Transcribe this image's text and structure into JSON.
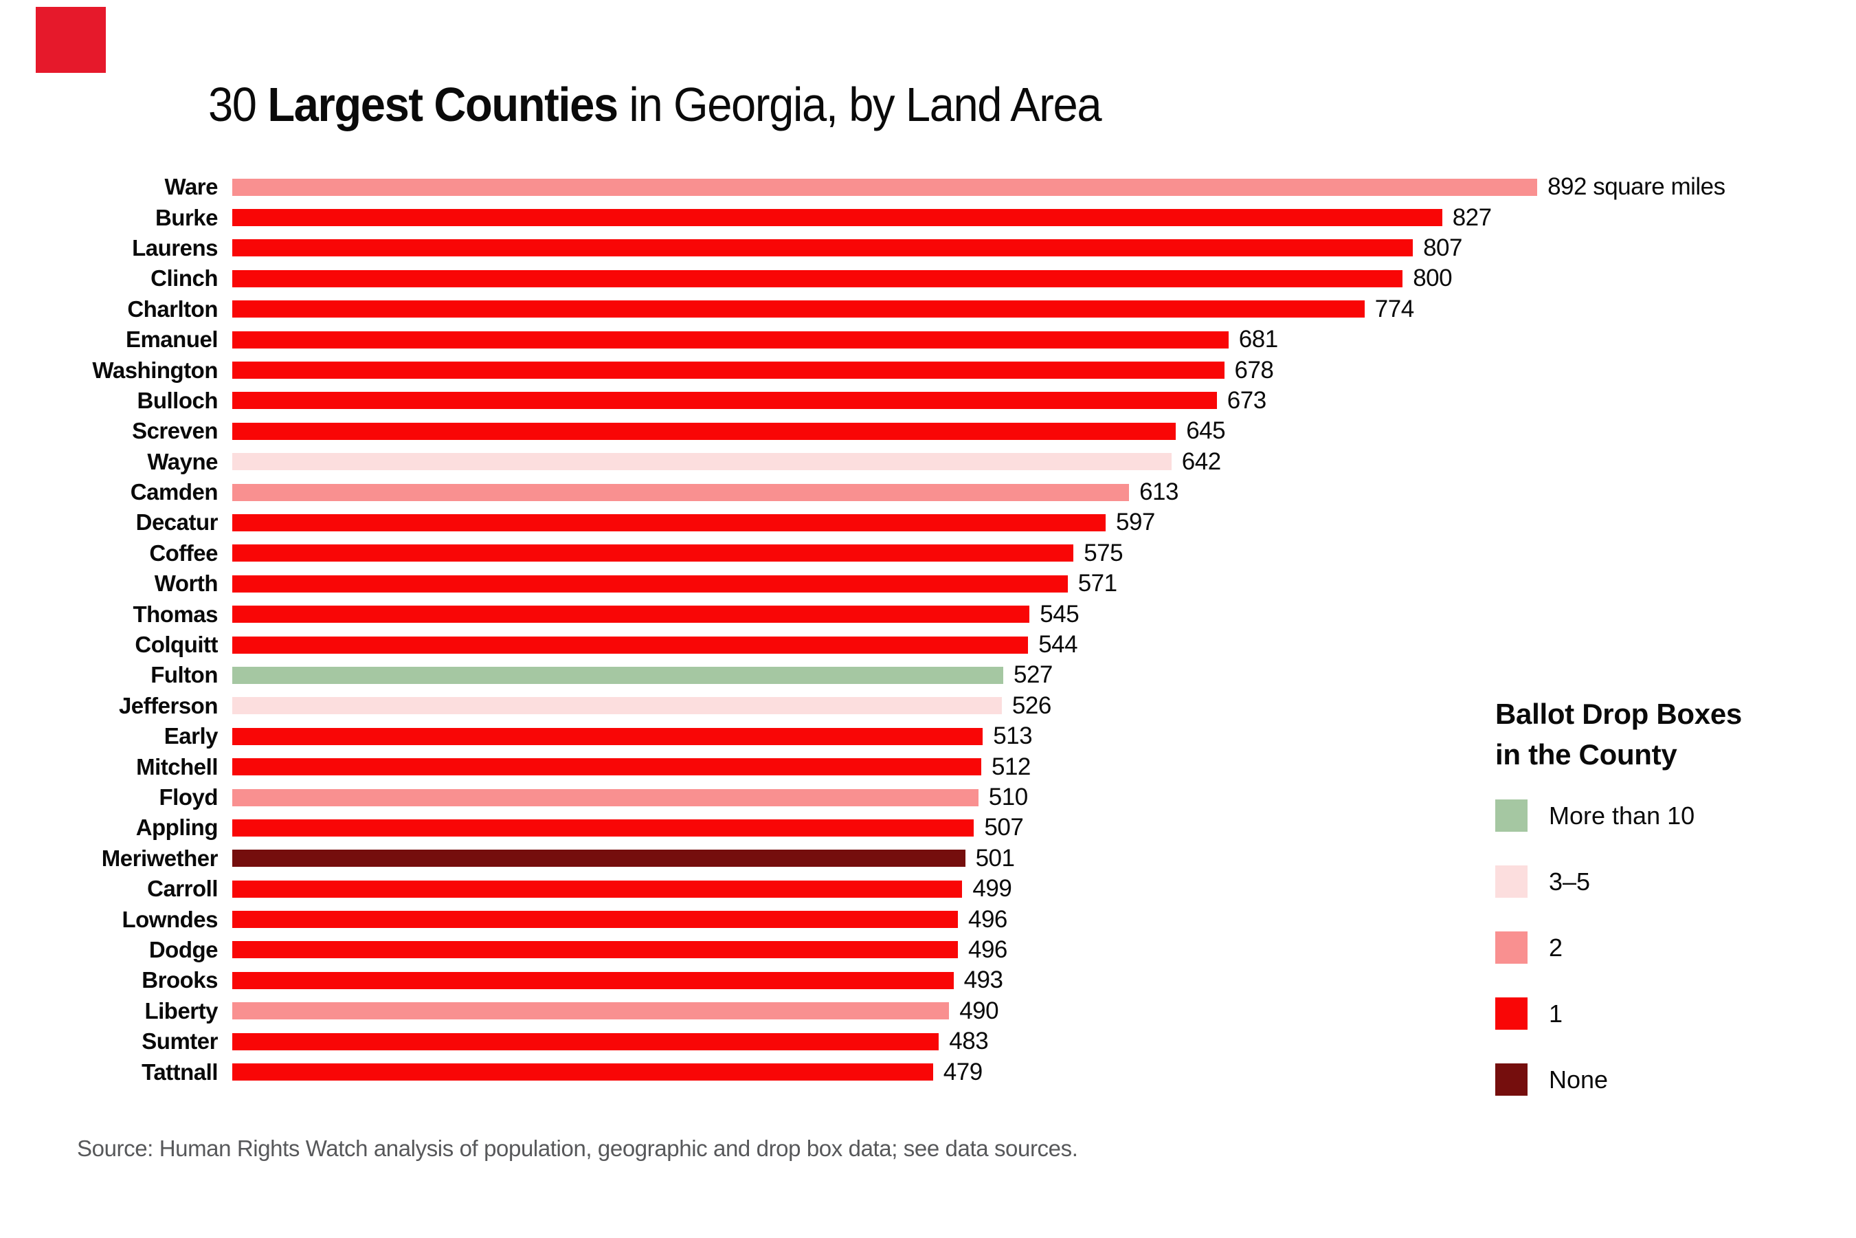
{
  "brand": {
    "logo_color": "#e6192b"
  },
  "title": {
    "prefix": "30 ",
    "bold": "Largest Counties",
    "suffix": " in Georgia, by Land Area"
  },
  "chart_data": {
    "type": "bar",
    "orientation": "horizontal",
    "title": "30 Largest Counties in Georgia, by Land Area",
    "value_unit": "square miles",
    "first_value_suffix": " square miles",
    "xlim": [
      0,
      900
    ],
    "grid": false,
    "legend_position": "right",
    "rows": [
      {
        "county": "Ware",
        "value": 892,
        "boxes": "2"
      },
      {
        "county": "Burke",
        "value": 827,
        "boxes": "1"
      },
      {
        "county": "Laurens",
        "value": 807,
        "boxes": "1"
      },
      {
        "county": "Clinch",
        "value": 800,
        "boxes": "1"
      },
      {
        "county": "Charlton",
        "value": 774,
        "boxes": "1"
      },
      {
        "county": "Emanuel",
        "value": 681,
        "boxes": "1"
      },
      {
        "county": "Washington",
        "value": 678,
        "boxes": "1"
      },
      {
        "county": "Bulloch",
        "value": 673,
        "boxes": "1"
      },
      {
        "county": "Screven",
        "value": 645,
        "boxes": "1"
      },
      {
        "county": "Wayne",
        "value": 642,
        "boxes": "3-5"
      },
      {
        "county": "Camden",
        "value": 613,
        "boxes": "2"
      },
      {
        "county": "Decatur",
        "value": 597,
        "boxes": "1"
      },
      {
        "county": "Coffee",
        "value": 575,
        "boxes": "1"
      },
      {
        "county": "Worth",
        "value": 571,
        "boxes": "1"
      },
      {
        "county": "Thomas",
        "value": 545,
        "boxes": "1"
      },
      {
        "county": "Colquitt",
        "value": 544,
        "boxes": "1"
      },
      {
        "county": "Fulton",
        "value": 527,
        "boxes": "more-than-10"
      },
      {
        "county": "Jefferson",
        "value": 526,
        "boxes": "3-5"
      },
      {
        "county": "Early",
        "value": 513,
        "boxes": "1"
      },
      {
        "county": "Mitchell",
        "value": 512,
        "boxes": "1"
      },
      {
        "county": "Floyd",
        "value": 510,
        "boxes": "2"
      },
      {
        "county": "Appling",
        "value": 507,
        "boxes": "1"
      },
      {
        "county": "Meriwether",
        "value": 501,
        "boxes": "none"
      },
      {
        "county": "Carroll",
        "value": 499,
        "boxes": "1"
      },
      {
        "county": "Lowndes",
        "value": 496,
        "boxes": "1"
      },
      {
        "county": "Dodge",
        "value": 496,
        "boxes": "1"
      },
      {
        "county": "Brooks",
        "value": 493,
        "boxes": "1"
      },
      {
        "county": "Liberty",
        "value": 490,
        "boxes": "2"
      },
      {
        "county": "Sumter",
        "value": 483,
        "boxes": "1"
      },
      {
        "county": "Tattnall",
        "value": 479,
        "boxes": "1"
      }
    ]
  },
  "colors": {
    "more-than-10": "#a5c7a2",
    "3-5": "#fcdede",
    "2": "#f99090",
    "1": "#f90606",
    "none": "#750e0d"
  },
  "legend": {
    "title_line1": "Ballot Drop Boxes",
    "title_line2": "in the County",
    "items": [
      {
        "key": "more-than-10",
        "label": "More than 10"
      },
      {
        "key": "3-5",
        "label": "3–5"
      },
      {
        "key": "2",
        "label": "2"
      },
      {
        "key": "1",
        "label": "1"
      },
      {
        "key": "none",
        "label": "None"
      }
    ]
  },
  "source": "Source: Human Rights Watch analysis of population, geographic and drop box data; see data sources."
}
